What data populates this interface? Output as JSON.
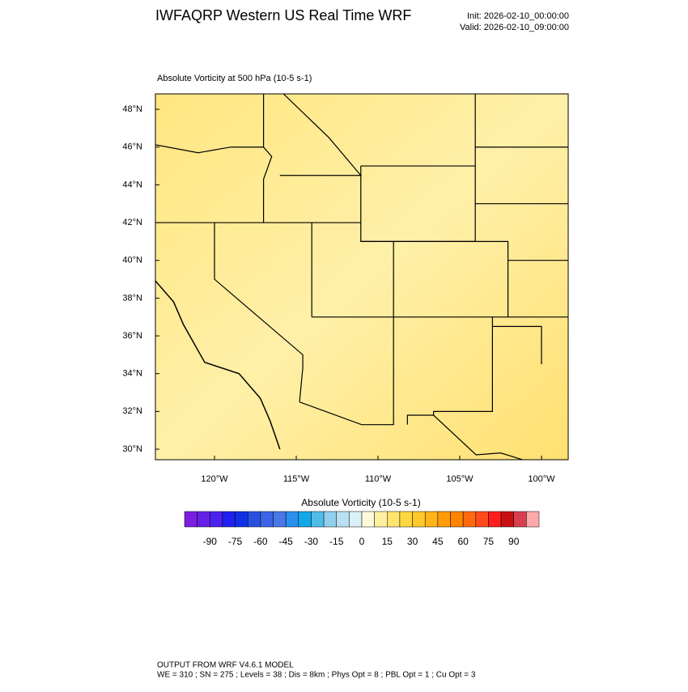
{
  "header": {
    "title": "IWFAQRP Western US Real Time WRF",
    "init": "Init: 2026-02-10_00:00:00",
    "valid": "Valid: 2026-02-10_09:00:00"
  },
  "map": {
    "subtitle": "Absolute Vorticity at 500 hPa   (10-5 s-1)",
    "lat_ticks": [
      {
        "value": 48,
        "label": "48°N"
      },
      {
        "value": 46,
        "label": "46°N"
      },
      {
        "value": 44,
        "label": "44°N"
      },
      {
        "value": 42,
        "label": "42°N"
      },
      {
        "value": 40,
        "label": "40°N"
      },
      {
        "value": 38,
        "label": "38°N"
      },
      {
        "value": 36,
        "label": "36°N"
      },
      {
        "value": 34,
        "label": "34°N"
      },
      {
        "value": 32,
        "label": "32°N"
      },
      {
        "value": 30,
        "label": "30°N"
      }
    ],
    "lon_ticks": [
      {
        "value": -120,
        "label": "120°W"
      },
      {
        "value": -115,
        "label": "115°W"
      },
      {
        "value": -110,
        "label": "110°W"
      },
      {
        "value": -105,
        "label": "105°W"
      },
      {
        "value": -100,
        "label": "100°W"
      }
    ]
  },
  "colorbar": {
    "title": "Absolute Vorticity  (10-5 s-1)",
    "colors": [
      "#7b1ee0",
      "#6420e6",
      "#4c22ee",
      "#2020f0",
      "#1030e8",
      "#2850e0",
      "#3c64e4",
      "#4a78e8",
      "#2a90ee",
      "#10a8e8",
      "#50bce8",
      "#90d0ec",
      "#b8e0f2",
      "#dcf0fa",
      "#fffadc",
      "#fff0a0",
      "#ffe470",
      "#ffd840",
      "#ffc828",
      "#ffb418",
      "#ff9c08",
      "#ff8400",
      "#ff6a10",
      "#ff4a1c",
      "#ff1e1e",
      "#c81010",
      "#d84050",
      "#ffaaaa"
    ],
    "ticks": [
      -90,
      -75,
      -60,
      -45,
      -30,
      -15,
      0,
      15,
      30,
      45,
      60,
      75,
      90
    ]
  },
  "footer": {
    "line1": "OUTPUT FROM WRF V4.6.1 MODEL",
    "line2": "WE = 310 ; SN = 275 ; Levels = 38 ; Dis = 8km ; Phys Opt = 8 ; PBL Opt = 1 ; Cu Opt = 3"
  }
}
